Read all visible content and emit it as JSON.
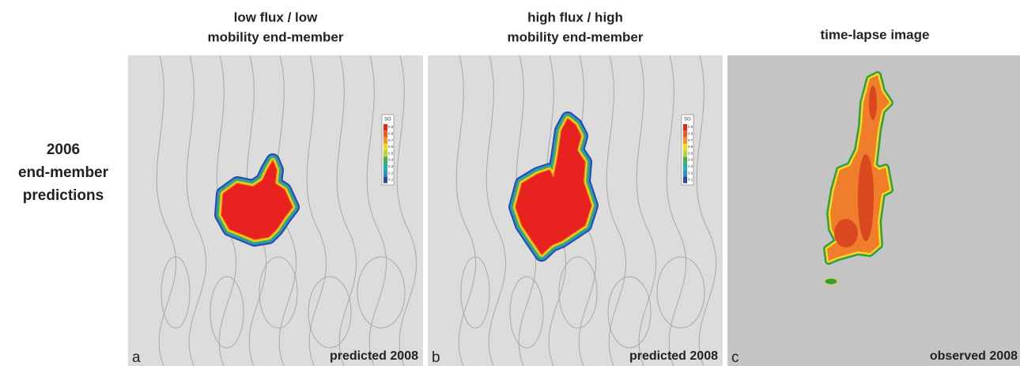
{
  "row_label": [
    "2006",
    "end-member",
    "predictions"
  ],
  "panels": [
    {
      "title": [
        "low flux / low",
        "mobility end-member"
      ],
      "letter": "a",
      "caption": "predicted 2008",
      "legend": {
        "title": "SG",
        "labels": [
          "0.9",
          "0.8",
          "0.7",
          "0.6",
          "0.5",
          "0.4",
          "0.3",
          "0.2",
          "0.1"
        ]
      }
    },
    {
      "title": [
        "high flux / high",
        "mobility end-member"
      ],
      "letter": "b",
      "caption": "predicted 2008",
      "legend": {
        "title": "SG",
        "labels": [
          "0.9",
          "0.8",
          "0.7",
          "0.6",
          "0.5",
          "0.4",
          "0.3",
          "0.2",
          "0.1"
        ]
      }
    },
    {
      "title": [
        "time-lapse image"
      ],
      "letter": "c",
      "caption": "observed 2008"
    }
  ]
}
